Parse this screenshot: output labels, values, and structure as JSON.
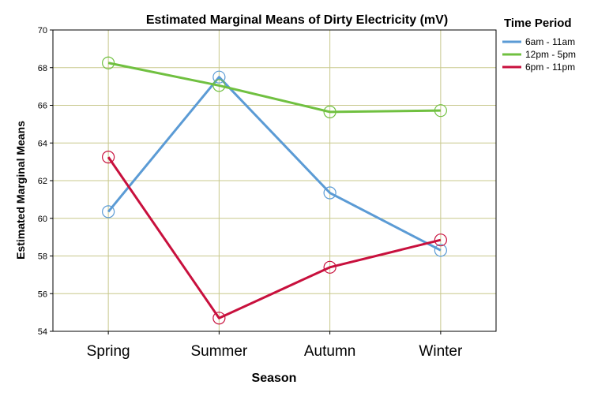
{
  "chart_data": {
    "type": "line",
    "title": "Estimated Marginal Means of Dirty Electricity (mV)",
    "xlabel": "Season",
    "ylabel": "Estimated Marginal Means",
    "categories": [
      "Spring",
      "Summer",
      "Autumn",
      "Winter"
    ],
    "ylim": [
      54,
      70
    ],
    "yticks": [
      54,
      56,
      58,
      60,
      62,
      64,
      66,
      68,
      70
    ],
    "grid": true,
    "legend": {
      "title": "Time Period",
      "placement": "right"
    },
    "series": [
      {
        "name": "6am - 11am",
        "color": "#5b9bd5",
        "values": [
          60.35,
          67.5,
          61.35,
          58.3
        ]
      },
      {
        "name": "12pm - 5pm",
        "color": "#70c040",
        "values": [
          68.25,
          67.05,
          65.65,
          65.72
        ]
      },
      {
        "name": "6pm - 11pm",
        "color": "#c8103d",
        "values": [
          63.25,
          54.7,
          57.4,
          58.85
        ]
      }
    ],
    "marker": "open-circle"
  }
}
